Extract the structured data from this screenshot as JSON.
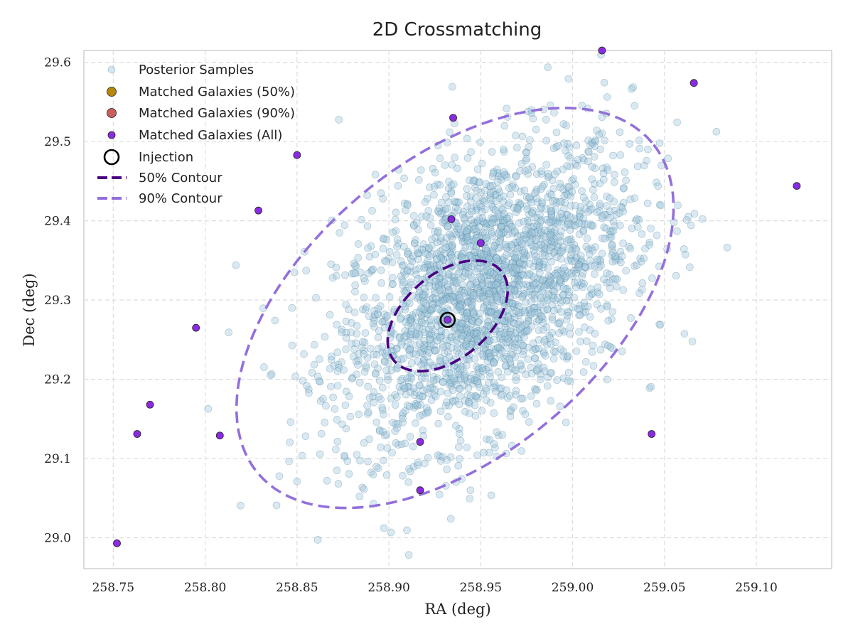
{
  "chart_data": {
    "type": "scatter",
    "title": "2D Crossmatching",
    "xlabel": "RA (deg)",
    "ylabel": "Dec (deg)",
    "xlim": [
      258.734,
      259.141
    ],
    "ylim": [
      28.961,
      29.615
    ],
    "x_ticks": [
      "258.75",
      "258.80",
      "258.85",
      "258.90",
      "258.95",
      "259.00",
      "259.05",
      "259.10"
    ],
    "x_tick_values": [
      258.75,
      258.8,
      258.85,
      258.9,
      258.95,
      259.0,
      259.05,
      259.1
    ],
    "y_ticks": [
      "29.0",
      "29.1",
      "29.2",
      "29.3",
      "29.4",
      "29.5",
      "29.6"
    ],
    "y_tick_values": [
      29.0,
      29.1,
      29.2,
      29.3,
      29.4,
      29.5,
      29.6
    ],
    "grid": true,
    "legend_position": "top-left",
    "legend": [
      {
        "label": "Posterior Samples",
        "marker": "small-circle",
        "color": "#a9cfe0"
      },
      {
        "label": "Matched Galaxies (50%)",
        "marker": "circle",
        "color": "#b8860b"
      },
      {
        "label": "Matched Galaxies (90%)",
        "marker": "circle",
        "color": "#cd5c5c"
      },
      {
        "label": "Matched Galaxies (All)",
        "marker": "circle",
        "color": "#8a2be2"
      },
      {
        "label": "Injection",
        "marker": "open-circle",
        "color": "#000000"
      },
      {
        "label": "50% Contour",
        "marker": "dashed-line",
        "color": "#4b0082"
      },
      {
        "label": "90% Contour",
        "marker": "dashed-line",
        "color": "#9370db"
      }
    ],
    "posterior_samples": {
      "count": 2500,
      "center": [
        258.952,
        29.31
      ],
      "sigma_ra": 0.04,
      "sigma_dec": 0.095,
      "correlation": 0.45
    },
    "injection": {
      "ra": 258.932,
      "dec": 29.275
    },
    "matched_galaxies_all": [
      {
        "ra": 258.752,
        "dec": 28.993
      },
      {
        "ra": 258.763,
        "dec": 29.131
      },
      {
        "ra": 258.77,
        "dec": 29.168
      },
      {
        "ra": 258.795,
        "dec": 29.265
      },
      {
        "ra": 258.808,
        "dec": 29.129
      },
      {
        "ra": 258.829,
        "dec": 29.413
      },
      {
        "ra": 258.85,
        "dec": 29.483
      },
      {
        "ra": 258.917,
        "dec": 29.121
      },
      {
        "ra": 258.917,
        "dec": 29.06
      },
      {
        "ra": 258.934,
        "dec": 29.402
      },
      {
        "ra": 258.935,
        "dec": 29.53
      },
      {
        "ra": 258.95,
        "dec": 29.372
      },
      {
        "ra": 259.016,
        "dec": 29.615
      },
      {
        "ra": 259.043,
        "dec": 29.131
      },
      {
        "ra": 259.066,
        "dec": 29.574
      },
      {
        "ra": 259.122,
        "dec": 29.444
      }
    ],
    "matched_galaxies_50": [],
    "matched_galaxies_90": [
      {
        "ra": 258.932,
        "dec": 29.275
      }
    ],
    "contour_50": {
      "center": [
        258.932,
        29.28
      ],
      "semi_major_deg": 0.038,
      "semi_minor_deg": 0.023,
      "angle_deg": 40
    },
    "contour_90": {
      "center": [
        258.936,
        29.29
      ],
      "semi_major_deg": 0.14,
      "semi_minor_deg": 0.08,
      "angle_deg": 40
    }
  }
}
